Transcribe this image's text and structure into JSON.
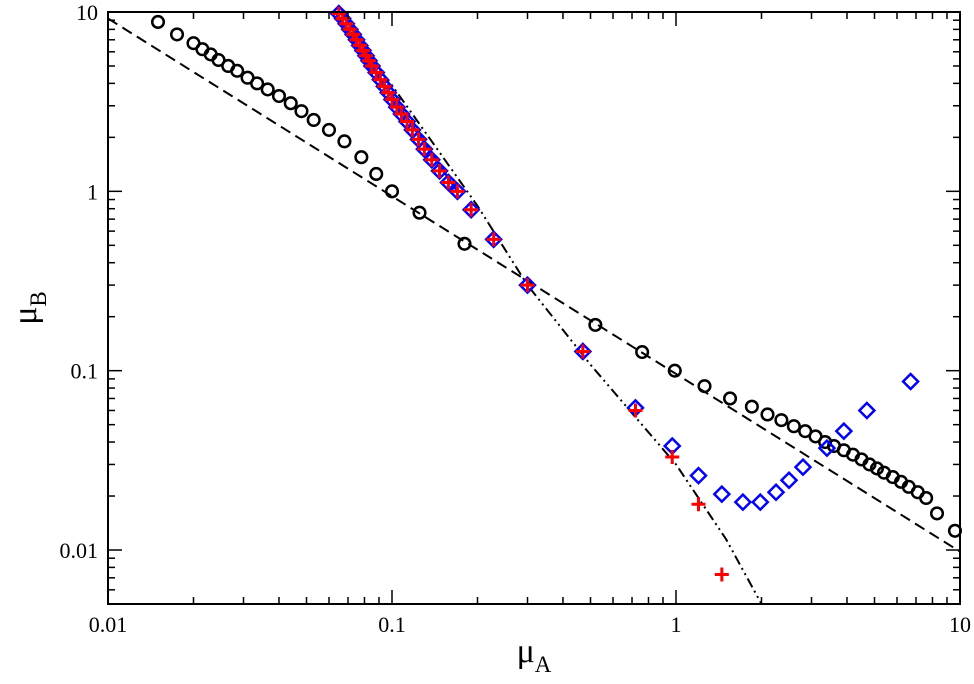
{
  "chart_data": {
    "type": "scatter",
    "title": "",
    "xlabel": "μ",
    "xlabel_subscript": "A",
    "ylabel": "μ",
    "ylabel_subscript": "B",
    "xscale": "log",
    "yscale": "log",
    "xlim": [
      0.01,
      10
    ],
    "ylim": [
      0.005,
      10
    ],
    "x_ticks": [
      0.01,
      0.1,
      1,
      10
    ],
    "x_tick_labels": [
      "0.01",
      "0.1",
      "1",
      "10"
    ],
    "y_ticks": [
      0.01,
      0.1,
      1,
      10
    ],
    "y_tick_labels": [
      "0.01",
      "0.1",
      "1",
      "10"
    ],
    "grid": false,
    "legend": "none",
    "series": [
      {
        "marker": "circle",
        "color": "#000000",
        "points": [
          [
            0.015,
            8.8
          ],
          [
            0.0175,
            7.5
          ],
          [
            0.02,
            6.7
          ],
          [
            0.0215,
            6.2
          ],
          [
            0.023,
            5.8
          ],
          [
            0.0245,
            5.4
          ],
          [
            0.0265,
            5.0
          ],
          [
            0.0285,
            4.7
          ],
          [
            0.031,
            4.3
          ],
          [
            0.0335,
            4.0
          ],
          [
            0.0365,
            3.7
          ],
          [
            0.04,
            3.4
          ],
          [
            0.044,
            3.1
          ],
          [
            0.048,
            2.8
          ],
          [
            0.053,
            2.5
          ],
          [
            0.06,
            2.2
          ],
          [
            0.068,
            1.9
          ],
          [
            0.078,
            1.55
          ],
          [
            0.088,
            1.25
          ],
          [
            0.1,
            1.0
          ],
          [
            0.125,
            0.76
          ],
          [
            0.18,
            0.51
          ],
          [
            0.52,
            0.18
          ],
          [
            0.76,
            0.127
          ],
          [
            0.99,
            0.1
          ],
          [
            1.26,
            0.082
          ],
          [
            1.55,
            0.07
          ],
          [
            1.85,
            0.063
          ],
          [
            2.1,
            0.057
          ],
          [
            2.35,
            0.053
          ],
          [
            2.6,
            0.049
          ],
          [
            2.85,
            0.046
          ],
          [
            3.1,
            0.043
          ],
          [
            3.35,
            0.04
          ],
          [
            3.6,
            0.038
          ],
          [
            3.9,
            0.036
          ],
          [
            4.2,
            0.034
          ],
          [
            4.5,
            0.032
          ],
          [
            4.8,
            0.03
          ],
          [
            5.1,
            0.0285
          ],
          [
            5.4,
            0.027
          ],
          [
            5.8,
            0.0255
          ],
          [
            6.2,
            0.024
          ],
          [
            6.6,
            0.0225
          ],
          [
            7.1,
            0.021
          ],
          [
            7.6,
            0.0195
          ],
          [
            8.3,
            0.016
          ],
          [
            9.6,
            0.0128
          ]
        ]
      },
      {
        "marker": "diamond",
        "color": "#0000ff",
        "points": [
          [
            0.065,
            9.8
          ],
          [
            0.067,
            9.2
          ],
          [
            0.069,
            8.6
          ],
          [
            0.071,
            8.0
          ],
          [
            0.073,
            7.5
          ],
          [
            0.075,
            7.0
          ],
          [
            0.077,
            6.5
          ],
          [
            0.079,
            6.1
          ],
          [
            0.081,
            5.7
          ],
          [
            0.083,
            5.35
          ],
          [
            0.085,
            5.0
          ],
          [
            0.088,
            4.6
          ],
          [
            0.091,
            4.2
          ],
          [
            0.094,
            3.85
          ],
          [
            0.097,
            3.55
          ],
          [
            0.1,
            3.25
          ],
          [
            0.104,
            2.95
          ],
          [
            0.108,
            2.7
          ],
          [
            0.113,
            2.45
          ],
          [
            0.118,
            2.2
          ],
          [
            0.124,
            1.95
          ],
          [
            0.13,
            1.72
          ],
          [
            0.138,
            1.5
          ],
          [
            0.147,
            1.3
          ],
          [
            0.158,
            1.12
          ],
          [
            0.17,
            1.0
          ],
          [
            0.19,
            0.79
          ],
          [
            0.228,
            0.54
          ],
          [
            0.3,
            0.3
          ],
          [
            0.47,
            0.128
          ],
          [
            0.72,
            0.062
          ],
          [
            0.97,
            0.038
          ],
          [
            1.2,
            0.026
          ],
          [
            1.45,
            0.0205
          ],
          [
            1.72,
            0.0185
          ],
          [
            1.98,
            0.0185
          ],
          [
            2.25,
            0.021
          ],
          [
            2.5,
            0.0245
          ],
          [
            2.8,
            0.029
          ],
          [
            3.4,
            0.037
          ],
          [
            3.9,
            0.046
          ],
          [
            4.7,
            0.06
          ],
          [
            6.7,
            0.087
          ]
        ]
      },
      {
        "marker": "plus",
        "color": "#ff0000",
        "points": [
          [
            0.065,
            9.8
          ],
          [
            0.067,
            9.2
          ],
          [
            0.069,
            8.6
          ],
          [
            0.071,
            8.0
          ],
          [
            0.073,
            7.5
          ],
          [
            0.075,
            7.0
          ],
          [
            0.077,
            6.5
          ],
          [
            0.079,
            6.1
          ],
          [
            0.081,
            5.7
          ],
          [
            0.083,
            5.35
          ],
          [
            0.085,
            5.0
          ],
          [
            0.088,
            4.6
          ],
          [
            0.091,
            4.2
          ],
          [
            0.094,
            3.85
          ],
          [
            0.097,
            3.55
          ],
          [
            0.1,
            3.25
          ],
          [
            0.104,
            2.95
          ],
          [
            0.108,
            2.7
          ],
          [
            0.113,
            2.45
          ],
          [
            0.118,
            2.2
          ],
          [
            0.124,
            1.95
          ],
          [
            0.13,
            1.72
          ],
          [
            0.138,
            1.5
          ],
          [
            0.147,
            1.3
          ],
          [
            0.158,
            1.12
          ],
          [
            0.17,
            1.0
          ],
          [
            0.19,
            0.79
          ],
          [
            0.228,
            0.54
          ],
          [
            0.3,
            0.3
          ],
          [
            0.47,
            0.128
          ],
          [
            0.72,
            0.06
          ],
          [
            0.97,
            0.033
          ],
          [
            1.2,
            0.018
          ],
          [
            1.45,
            0.0073
          ]
        ]
      }
    ],
    "lines": [
      {
        "style": "dashed",
        "color": "#000000",
        "points": [
          [
            0.01,
            9.2
          ],
          [
            10,
            0.0098
          ]
        ]
      },
      {
        "style": "dash-dot-dot",
        "color": "#000000",
        "points": [
          [
            0.063,
            10
          ],
          [
            0.1,
            3.9
          ],
          [
            0.2,
            0.83
          ],
          [
            0.3,
            0.3
          ],
          [
            0.5,
            0.108
          ],
          [
            1.0,
            0.03
          ],
          [
            1.5,
            0.0115
          ],
          [
            2.0,
            0.005
          ]
        ]
      },
      {
        "style": "solid",
        "color": "#0000ff",
        "points": [
          [
            0.063,
            10
          ],
          [
            0.17,
            1.0
          ]
        ]
      }
    ]
  }
}
